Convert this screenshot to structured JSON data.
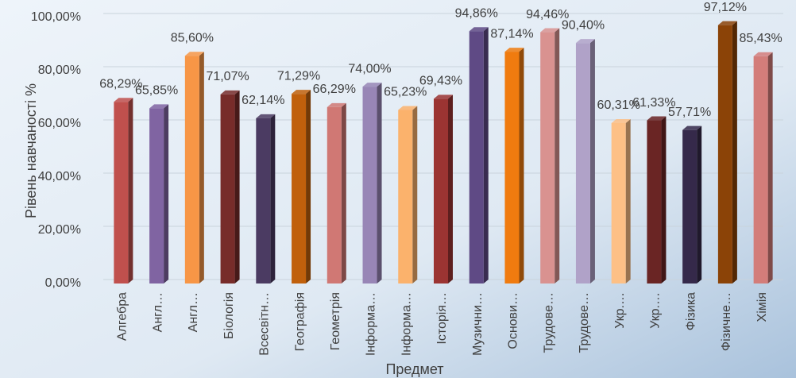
{
  "chart_data": {
    "type": "bar",
    "x_label": "Предмет",
    "y_label": "Рівень навчаності %",
    "categories": [
      "Алгебра",
      "Англ…",
      "Англ…",
      "Біологія",
      "Всесвітн…",
      "Географія",
      "Геометрія",
      "Інформа…",
      "Інформа…",
      "Історія…",
      "Музични…",
      "Основи…",
      "Трудове…",
      "Трудове…",
      "Укр.…",
      "Укр.…",
      "Фізика",
      "Фізичне…",
      "Хімія"
    ],
    "values": [
      68.29,
      65.85,
      85.6,
      71.07,
      62.14,
      71.29,
      66.29,
      74.0,
      65.23,
      69.43,
      94.86,
      87.14,
      94.46,
      90.4,
      60.31,
      61.33,
      57.71,
      97.12,
      85.43
    ],
    "value_labels": [
      "68,29%",
      "65,85%",
      "85,60%",
      "71,07%",
      "62,14%",
      "71,29%",
      "66,29%",
      "74,00%",
      "65,23%",
      "69,43%",
      "94,86%",
      "87,14%",
      "94,46%",
      "90,40%",
      "60,31%",
      "61,33%",
      "57,71%",
      "97,12%",
      "85,43%"
    ],
    "colors": [
      "#c0504d",
      "#8064a2",
      "#f79646",
      "#772c2a",
      "#4b3b62",
      "#c0600c",
      "#d07874",
      "#9886b6",
      "#fbb26c",
      "#9b3432",
      "#5f4a85",
      "#f07b0f",
      "#d99290",
      "#b0a2c8",
      "#fdc086",
      "#6a2524",
      "#35294a",
      "#8b4307",
      "#d37d7a"
    ],
    "ylim": [
      0,
      100
    ],
    "yticks": [
      {
        "value": 0,
        "label": "0,00%"
      },
      {
        "value": 20,
        "label": "20,00%"
      },
      {
        "value": 40,
        "label": "40,00%"
      },
      {
        "value": 60,
        "label": "60,00%"
      },
      {
        "value": 80,
        "label": "80,00%"
      },
      {
        "value": 100,
        "label": "100,00%"
      }
    ],
    "grid": true
  }
}
